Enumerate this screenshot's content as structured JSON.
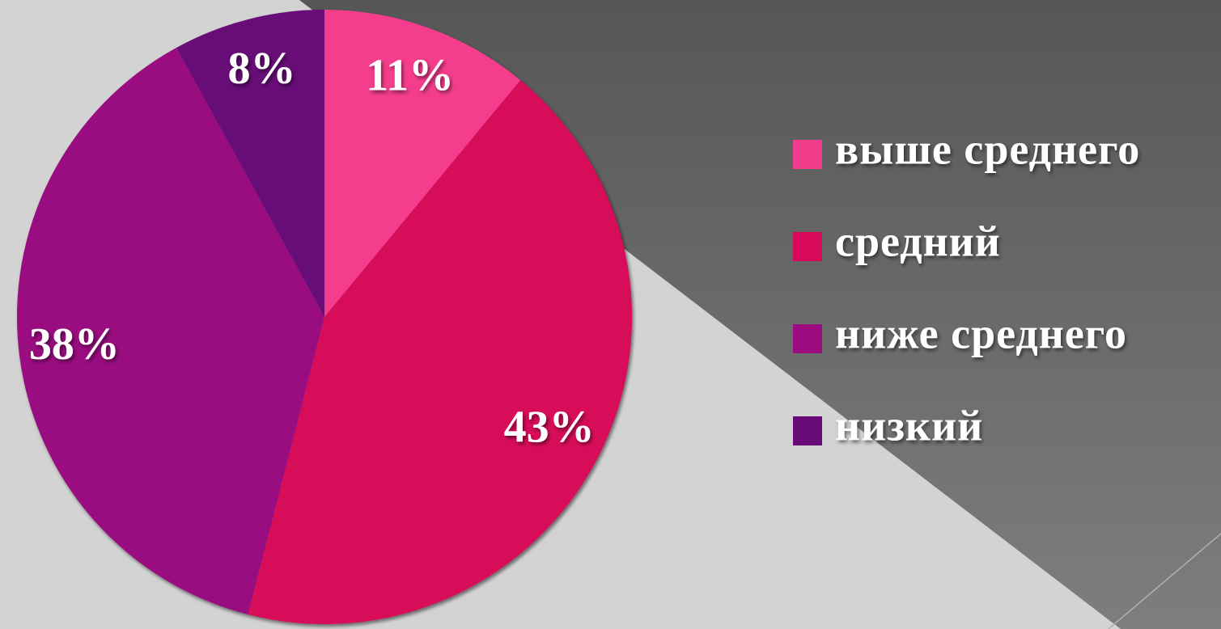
{
  "chart_data": {
    "type": "pie",
    "categories": [
      "выше среднего",
      "средний",
      "ниже среднего",
      "низкий"
    ],
    "values": [
      11,
      43,
      38,
      8
    ],
    "value_labels": [
      "11%",
      "43%",
      "38%",
      "8%"
    ],
    "colors": [
      "#f43c8c",
      "#d8085a",
      "#9a0c80",
      "#680a78"
    ],
    "legend": "right"
  }
}
